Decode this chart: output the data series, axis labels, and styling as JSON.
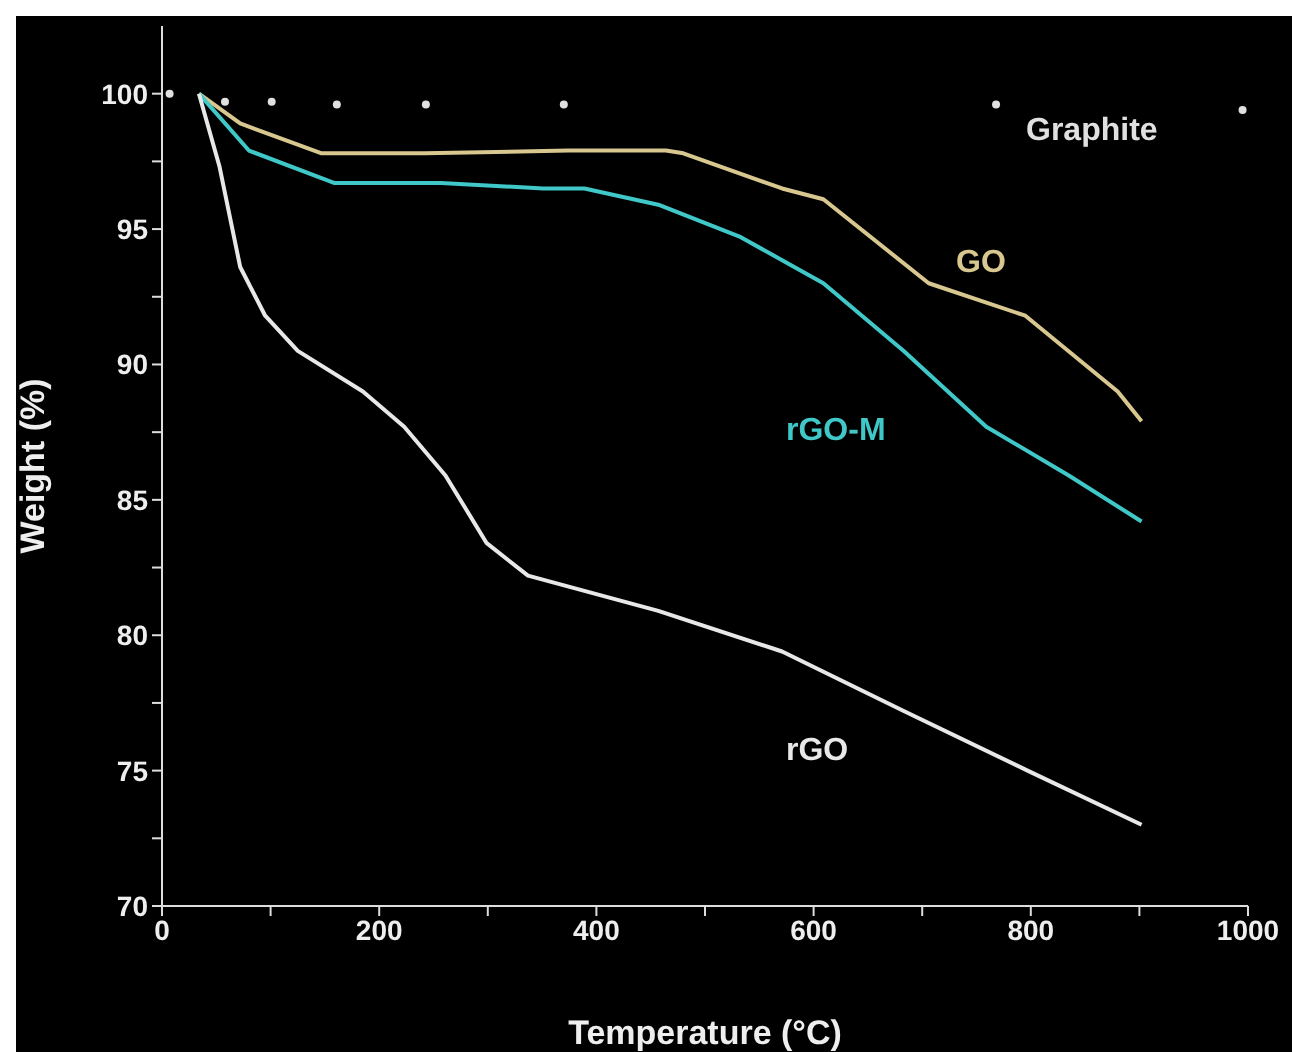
{
  "chart_data": {
    "type": "line",
    "xlabel": "Temperature (°C)",
    "ylabel": "Weight (%)",
    "xlim": [
      0,
      1000
    ],
    "ylim": [
      70,
      102.5
    ],
    "xticks": [
      0,
      {
        "value": 100,
        "label": null
      },
      200,
      {
        "value": 300,
        "label": null
      },
      400,
      {
        "value": 500,
        "label": null
      },
      600,
      {
        "value": 700,
        "label": null
      },
      800,
      {
        "value": 900,
        "label": null
      },
      1000
    ],
    "yticks": [
      70,
      {
        "value": 72.5,
        "label": null
      },
      75,
      {
        "value": 77.5,
        "label": null
      },
      80,
      {
        "value": 82.5,
        "label": null
      },
      85,
      {
        "value": 87.5,
        "label": null
      },
      90,
      {
        "value": 92.5,
        "label": null
      },
      95,
      {
        "value": 97.5,
        "label": null
      },
      100
    ],
    "marker": "none",
    "line_style": "solid",
    "series": [
      {
        "name": "Graphite",
        "type": "scatter",
        "marker": "circle",
        "color": "#e0e0e0",
        "x": [
          7,
          58,
          101,
          161,
          243,
          370,
          768,
          995
        ],
        "values": [
          100,
          99.7,
          99.7,
          99.6,
          99.6,
          99.6,
          99.6,
          99.4
        ]
      },
      {
        "name": "GO",
        "color": "#d8c890",
        "x": [
          34,
          72,
          147,
          242,
          374,
          424,
          464,
          480,
          571,
          609,
          706,
          795,
          880,
          902
        ],
        "values": [
          100,
          98.9,
          97.8,
          97.8,
          97.9,
          97.9,
          97.9,
          97.8,
          96.5,
          96.1,
          93,
          91.8,
          89,
          87.9
        ]
      },
      {
        "name": "rGO-M",
        "color": "#40c8c8",
        "x": [
          34,
          80,
          159,
          257,
          351,
          389,
          457,
          533,
          609,
          683,
          759,
          835,
          902
        ],
        "values": [
          100,
          97.9,
          96.7,
          96.7,
          96.5,
          96.5,
          95.9,
          94.7,
          93,
          90.5,
          87.7,
          85.9,
          84.2
        ]
      },
      {
        "name": "rGO",
        "color": "#e8e8e8",
        "x": [
          34,
          53,
          72,
          95,
          125,
          185,
          223,
          261,
          299,
          337,
          457,
          571,
          683,
          797,
          902
        ],
        "values": [
          100,
          97.3,
          93.6,
          91.8,
          90.5,
          89,
          87.7,
          85.9,
          83.4,
          82.2,
          80.9,
          79.4,
          77.2,
          75,
          73
        ]
      }
    ]
  }
}
